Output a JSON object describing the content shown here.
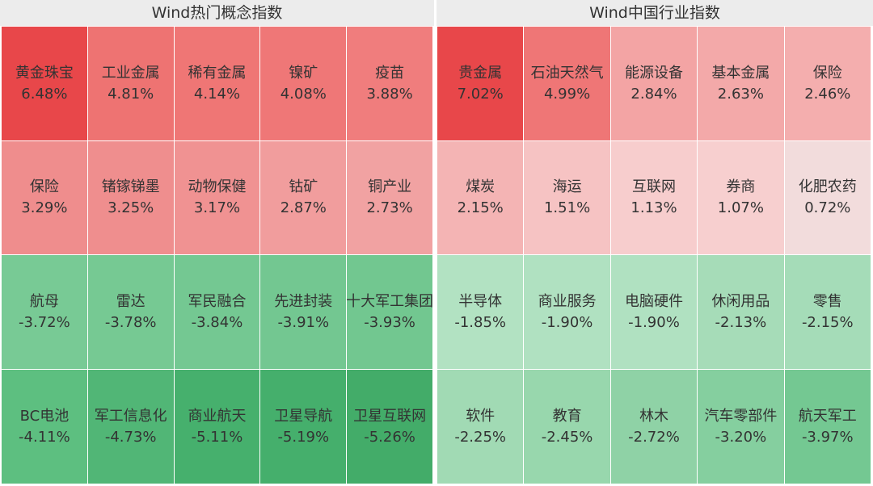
{
  "panels": [
    {
      "title": "Wind热门概念指数",
      "cells": [
        {
          "name": "黄金珠宝",
          "change": "6.48%",
          "color": "#e8474a"
        },
        {
          "name": "工业金属",
          "change": "4.81%",
          "color": "#ee7372"
        },
        {
          "name": "稀有金属",
          "change": "4.14%",
          "color": "#ef7675"
        },
        {
          "name": "镍矿",
          "change": "4.08%",
          "color": "#ef7777"
        },
        {
          "name": "疫苗",
          "change": "3.88%",
          "color": "#f07d7d"
        },
        {
          "name": "保险",
          "change": "3.29%",
          "color": "#ef8d8d"
        },
        {
          "name": "锗镓锑墨",
          "change": "3.25%",
          "color": "#ef8e8e"
        },
        {
          "name": "动物保健",
          "change": "3.17%",
          "color": "#f09292"
        },
        {
          "name": "钴矿",
          "change": "2.87%",
          "color": "#f19d9d"
        },
        {
          "name": "铜产业",
          "change": "2.73%",
          "color": "#f1a2a2"
        },
        {
          "name": "航母",
          "change": "-3.72%",
          "color": "#78ca95"
        },
        {
          "name": "雷达",
          "change": "-3.78%",
          "color": "#76c993"
        },
        {
          "name": "军民融合",
          "change": "-3.84%",
          "color": "#74c892"
        },
        {
          "name": "先进封装",
          "change": "-3.91%",
          "color": "#73c791"
        },
        {
          "name": "十大军工集团",
          "change": "-3.93%",
          "color": "#72c790"
        },
        {
          "name": "BC电池",
          "change": "-4.11%",
          "color": "#5dbf80"
        },
        {
          "name": "军工信息化",
          "change": "-4.73%",
          "color": "#51b676"
        },
        {
          "name": "商业航天",
          "change": "-5.11%",
          "color": "#46b06d"
        },
        {
          "name": "卫星导航",
          "change": "-5.19%",
          "color": "#45af6c"
        },
        {
          "name": "卫星互联网",
          "change": "-5.26%",
          "color": "#43ac69"
        }
      ]
    },
    {
      "title": "Wind中国行业指数",
      "cells": [
        {
          "name": "贵金属",
          "change": "7.02%",
          "color": "#e8474a"
        },
        {
          "name": "石油天然气",
          "change": "4.99%",
          "color": "#ef7676"
        },
        {
          "name": "能源设备",
          "change": "2.84%",
          "color": "#f3a4a4"
        },
        {
          "name": "基本金属",
          "change": "2.63%",
          "color": "#f3a9a9"
        },
        {
          "name": "保险",
          "change": "2.46%",
          "color": "#f4aeae"
        },
        {
          "name": "煤炭",
          "change": "2.15%",
          "color": "#f4b4b4"
        },
        {
          "name": "海运",
          "change": "1.51%",
          "color": "#f6c3c3"
        },
        {
          "name": "互联网",
          "change": "1.13%",
          "color": "#f7cdcd"
        },
        {
          "name": "券商",
          "change": "1.07%",
          "color": "#f7cfcf"
        },
        {
          "name": "化肥农药",
          "change": "0.72%",
          "color": "#f2dcdc"
        },
        {
          "name": "半导体",
          "change": "-1.85%",
          "color": "#b2e2c2"
        },
        {
          "name": "商业服务",
          "change": "-1.90%",
          "color": "#b0e1c1"
        },
        {
          "name": "电脑硬件",
          "change": "-1.90%",
          "color": "#b0e1c1"
        },
        {
          "name": "休闲用品",
          "change": "-2.13%",
          "color": "#a6dcb8"
        },
        {
          "name": "零售",
          "change": "-2.15%",
          "color": "#a5dcb8"
        },
        {
          "name": "软件",
          "change": "-2.25%",
          "color": "#a1dab4"
        },
        {
          "name": "教育",
          "change": "-2.45%",
          "color": "#98d7ad"
        },
        {
          "name": "林木",
          "change": "-2.72%",
          "color": "#8fd2a6"
        },
        {
          "name": "汽车零部件",
          "change": "-3.20%",
          "color": "#85cf9f"
        },
        {
          "name": "航天军工",
          "change": "-3.97%",
          "color": "#74c892"
        }
      ]
    }
  ]
}
